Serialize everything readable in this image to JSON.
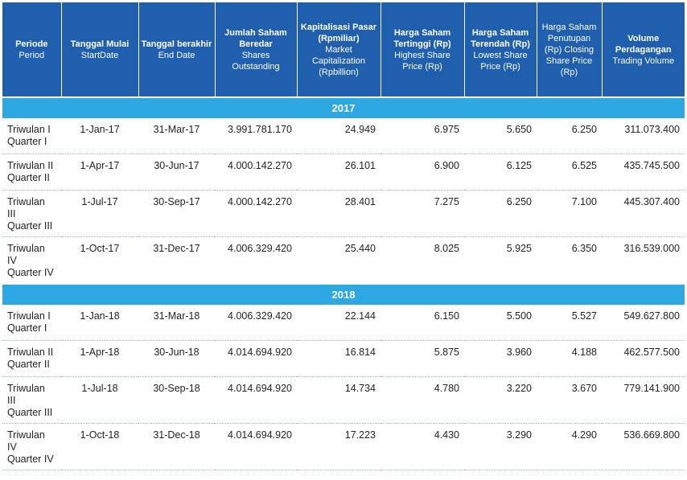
{
  "headers": [
    {
      "id": "period",
      "bold": "Periode",
      "en": "Period"
    },
    {
      "id": "start",
      "bold": "Tanggal Mulai",
      "en": "StartDate"
    },
    {
      "id": "end",
      "bold": "Tanggal berakhir",
      "en": "End Date"
    },
    {
      "id": "shares",
      "bold": "Jumlah Saham Beredar",
      "en": "Shares Outstanding"
    },
    {
      "id": "cap",
      "bold": "Kapitalisasi Pasar (Rpmiliar)",
      "en": "Market Capitalization (Rpbillion)"
    },
    {
      "id": "high",
      "bold": "Harga Saham Tertinggi (Rp)",
      "en": "Highest Share Price (Rp)"
    },
    {
      "id": "low",
      "bold": "Harga Saham Terendah (Rp)",
      "en": "Lowest Share Price (Rp)"
    },
    {
      "id": "close",
      "bold": "",
      "en": "Harga Saham Penutupan (Rp) Closing Share Price (Rp)"
    },
    {
      "id": "volume",
      "bold": "Volume Perdagangan",
      "en": "Trading Volume"
    }
  ],
  "years": [
    {
      "year": "2017",
      "rows": [
        {
          "period": [
            "Triwulan I",
            "Quarter I"
          ],
          "start": "1-Jan-17",
          "end": "31-Mar-17",
          "shares": "3.991.781.170",
          "cap": "24.949",
          "high": "6.975",
          "low": "5.650",
          "close": "6.250",
          "volume": "311.073.400"
        },
        {
          "period": [
            "Triwulan II",
            "Quarter II"
          ],
          "start": "1-Apr-17",
          "end": "30-Jun-17",
          "shares": "4.000.142.270",
          "cap": "26.101",
          "high": "6.900",
          "low": "6.125",
          "close": "6.525",
          "volume": "435.745.500"
        },
        {
          "period": [
            "Triwulan",
            "III",
            "Quarter III"
          ],
          "start": "1-Jul-17",
          "end": "30-Sep-17",
          "shares": "4.000.142.270",
          "cap": "28.401",
          "high": "7.275",
          "low": "6.250",
          "close": "7.100",
          "volume": "445.307.400"
        },
        {
          "period": [
            "Triwulan",
            "IV",
            "Quarter IV"
          ],
          "start": "1-Oct-17",
          "end": "31-Dec-17",
          "shares": "4.006.329.420",
          "cap": "25.440",
          "high": "8.025",
          "low": "5.925",
          "close": "6.350",
          "volume": "316.539.000"
        }
      ]
    },
    {
      "year": "2018",
      "rows": [
        {
          "period": [
            "Triwulan I",
            "Quarter I"
          ],
          "start": "1-Jan-18",
          "end": "31-Mar-18",
          "shares": "4.006.329.420",
          "cap": "22.144",
          "high": "6.150",
          "low": "5.500",
          "close": "5.527",
          "volume": "549.627.800"
        },
        {
          "period": [
            "Triwulan II",
            "Quarter II"
          ],
          "start": "1-Apr-18",
          "end": "30-Jun-18",
          "shares": "4.014.694.920",
          "cap": "16.814",
          "high": "5.875",
          "low": "3.960",
          "close": "4.188",
          "volume": "462.577.500"
        },
        {
          "period": [
            "Triwulan",
            "III",
            "Quarter III"
          ],
          "start": "1-Jul-18",
          "end": "30-Sep-18",
          "shares": "4.014.694.920",
          "cap": "14.734",
          "high": "4.780",
          "low": "3.220",
          "close": "3.670",
          "volume": "779.141.900"
        },
        {
          "period": [
            "Triwulan",
            "IV",
            "Quarter IV"
          ],
          "start": "1-Oct-18",
          "end": "31-Dec-18",
          "shares": "4.014.694.920",
          "cap": "17.223",
          "high": "4.430",
          "low": "3.290",
          "close": "4.290",
          "volume": "536.669.800"
        }
      ]
    }
  ]
}
